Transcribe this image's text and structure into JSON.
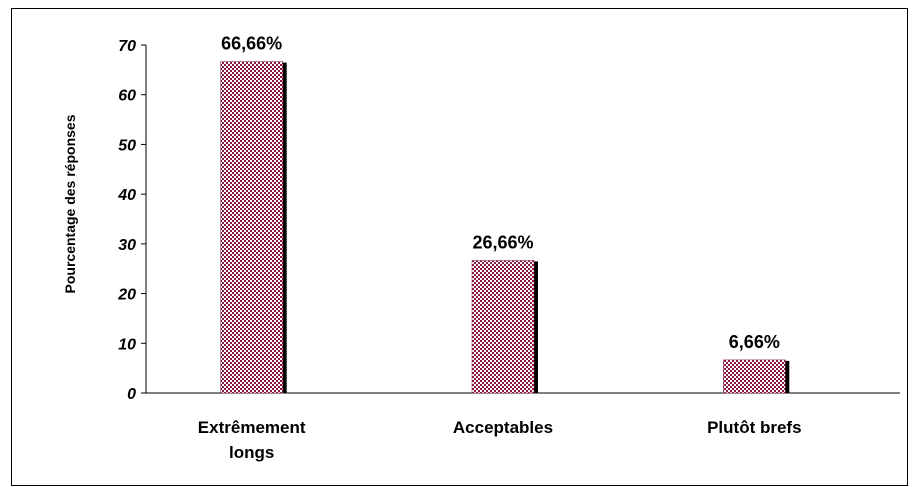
{
  "chart_data": {
    "type": "bar",
    "title": "",
    "xlabel": "",
    "ylabel": "Pourcentage des réponses",
    "categories": [
      [
        "Extrêmement",
        "longs"
      ],
      [
        "Acceptables"
      ],
      [
        "Plutôt brefs"
      ]
    ],
    "values": [
      66.66,
      26.66,
      6.66
    ],
    "data_labels": [
      "66,66%",
      "26,66%",
      "6,66%"
    ],
    "ylim": [
      0,
      70
    ],
    "yticks": [
      0,
      10,
      20,
      30,
      40,
      50,
      60,
      70
    ],
    "ytick_labels": [
      "0",
      "10",
      "20",
      "30",
      "40",
      "50",
      "60",
      "70"
    ],
    "grid": false,
    "legend": "none",
    "colors": {
      "bar_pattern_a": "#8b1a3c",
      "bar_pattern_b": "#ffffff",
      "bar_shadow": "#000000",
      "axis": "#000000",
      "frame": "#000000"
    }
  }
}
